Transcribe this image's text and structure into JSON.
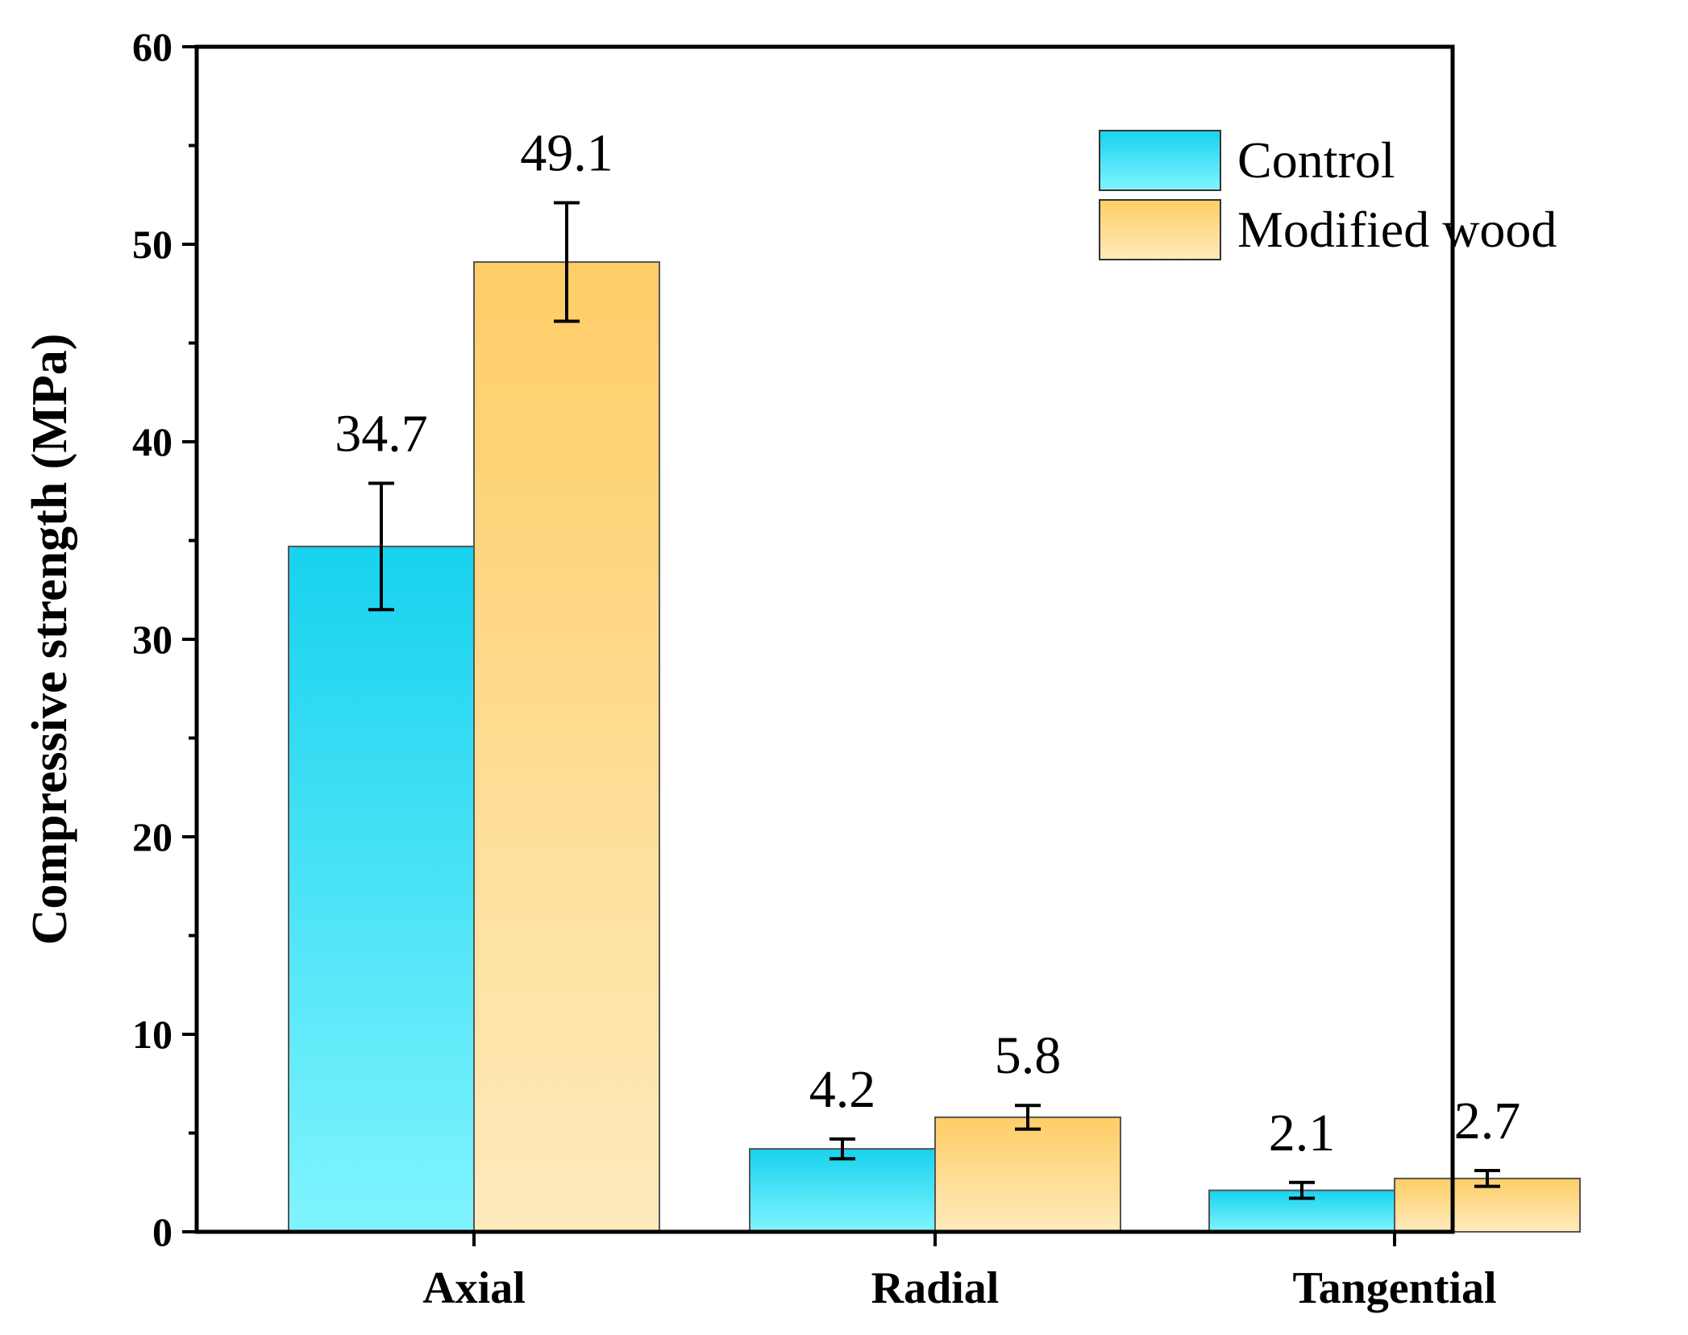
{
  "chart_data": {
    "type": "bar",
    "title": "",
    "xlabel": "",
    "ylabel": "Compressive strength (MPa)",
    "ylim": [
      0,
      60
    ],
    "yticks": [
      0,
      10,
      20,
      30,
      40,
      50,
      60
    ],
    "categories": [
      "Axial",
      "Radial",
      "Tangential"
    ],
    "series": [
      {
        "name": "Control",
        "values": [
          34.7,
          4.2,
          2.1
        ],
        "errors": [
          3.2,
          0.5,
          0.4
        ],
        "labels": [
          "34.7",
          "4.2",
          "2.1"
        ],
        "color_top": "#17d2ee",
        "color_bottom": "#80f4ff"
      },
      {
        "name": "Modified wood",
        "values": [
          49.1,
          5.8,
          2.7
        ],
        "errors": [
          3.0,
          0.6,
          0.4
        ],
        "labels": [
          "49.1",
          "5.8",
          "2.7"
        ],
        "color_top": "#fecd66",
        "color_bottom": "#feebbd"
      }
    ],
    "legend_position": "top-right",
    "grid": false
  }
}
